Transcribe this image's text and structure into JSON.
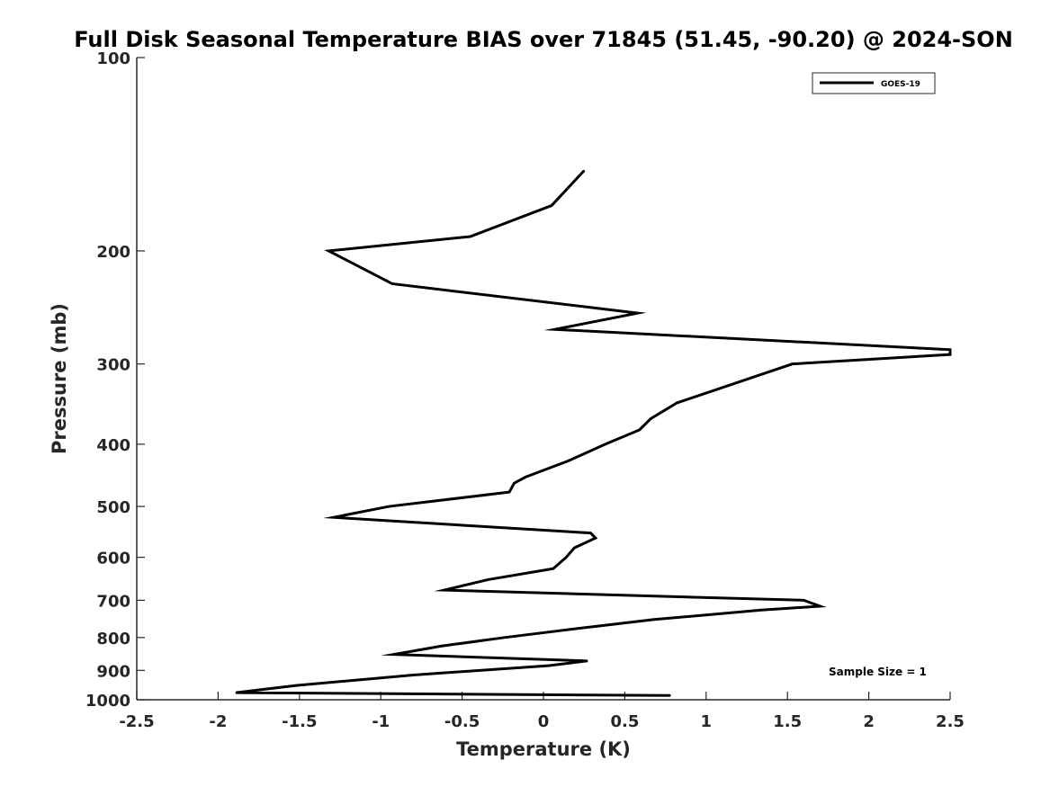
{
  "chart_data": {
    "type": "line",
    "title": "Full Disk Seasonal Temperature BIAS over 71845 (51.45, -90.20) @ 2024-SON",
    "xlabel": "Temperature (K)",
    "ylabel": "Pressure (mb)",
    "xlim": [
      -2.5,
      2.5
    ],
    "ylim": [
      100,
      1000
    ],
    "y_scale": "log",
    "y_reversed": true,
    "x_ticks": [
      -2.5,
      -2,
      -1.5,
      -1,
      -0.5,
      0,
      0.5,
      1,
      1.5,
      2,
      2.5
    ],
    "x_tick_labels": [
      "-2.5",
      "-2",
      "-1.5",
      "-1",
      "-0.5",
      "0",
      "0.5",
      "1",
      "1.5",
      "2",
      "2.5"
    ],
    "y_ticks": [
      100,
      200,
      300,
      400,
      500,
      600,
      700,
      800,
      900,
      1000
    ],
    "y_tick_labels": [
      "100",
      "200",
      "300",
      "400",
      "500",
      "600",
      "700",
      "800",
      "900",
      "1000"
    ],
    "grid": false,
    "legend": {
      "placement": "top-right",
      "entries": [
        "GOES-19"
      ]
    },
    "annotation": "Sample Size = 1",
    "series": [
      {
        "name": "GOES-19",
        "color": "#000000",
        "points": [
          {
            "x": 0.25,
            "y": 150
          },
          {
            "x": 0.05,
            "y": 170
          },
          {
            "x": -0.45,
            "y": 190
          },
          {
            "x": -1.32,
            "y": 200
          },
          {
            "x": -0.93,
            "y": 225
          },
          {
            "x": 0.58,
            "y": 250
          },
          {
            "x": 0.07,
            "y": 265
          },
          {
            "x": 2.5,
            "y": 285
          },
          {
            "x": 2.5,
            "y": 290
          },
          {
            "x": 1.53,
            "y": 300
          },
          {
            "x": 0.82,
            "y": 345
          },
          {
            "x": 0.66,
            "y": 365
          },
          {
            "x": 0.59,
            "y": 380
          },
          {
            "x": 0.38,
            "y": 400
          },
          {
            "x": 0.15,
            "y": 425
          },
          {
            "x": -0.11,
            "y": 450
          },
          {
            "x": -0.18,
            "y": 460
          },
          {
            "x": -0.21,
            "y": 475
          },
          {
            "x": -0.95,
            "y": 500
          },
          {
            "x": -1.29,
            "y": 520
          },
          {
            "x": 0.29,
            "y": 550
          },
          {
            "x": 0.32,
            "y": 560
          },
          {
            "x": 0.19,
            "y": 580
          },
          {
            "x": 0.14,
            "y": 600
          },
          {
            "x": 0.06,
            "y": 625
          },
          {
            "x": -0.34,
            "y": 650
          },
          {
            "x": -0.61,
            "y": 675
          },
          {
            "x": 1.6,
            "y": 700
          },
          {
            "x": 1.7,
            "y": 715
          },
          {
            "x": 1.34,
            "y": 725
          },
          {
            "x": 0.68,
            "y": 750
          },
          {
            "x": 0.2,
            "y": 775
          },
          {
            "x": -0.24,
            "y": 800
          },
          {
            "x": -0.63,
            "y": 825
          },
          {
            "x": -0.92,
            "y": 850
          },
          {
            "x": 0.27,
            "y": 870
          },
          {
            "x": 0.03,
            "y": 885
          },
          {
            "x": -0.8,
            "y": 915
          },
          {
            "x": -1.52,
            "y": 950
          },
          {
            "x": -1.89,
            "y": 975
          },
          {
            "x": 0.78,
            "y": 985
          }
        ]
      }
    ]
  }
}
